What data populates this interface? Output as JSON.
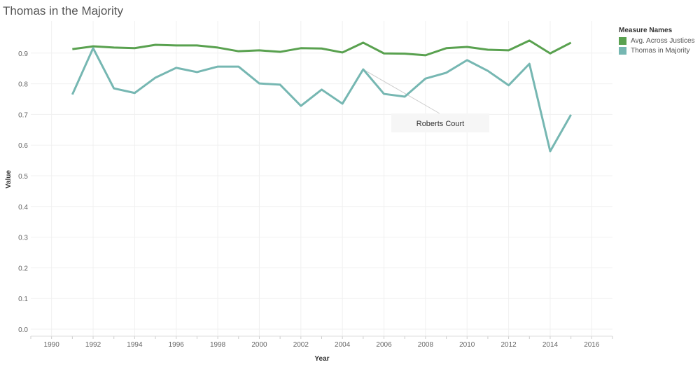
{
  "chart_data": {
    "type": "line",
    "title": "Thomas in the Majority",
    "xlabel": "Year",
    "ylabel": "Value",
    "xlim": [
      1989,
      2017
    ],
    "ylim": [
      0,
      1.0
    ],
    "xticks": [
      1990,
      1992,
      1994,
      1996,
      1998,
      2000,
      2002,
      2004,
      2006,
      2008,
      2010,
      2012,
      2014,
      2016
    ],
    "yticks": [
      0.0,
      0.1,
      0.2,
      0.3,
      0.4,
      0.5,
      0.6,
      0.7,
      0.8,
      0.9
    ],
    "grid": true,
    "legend": {
      "title": "Measure Names",
      "placement": "right"
    },
    "x": [
      1991,
      1992,
      1993,
      1994,
      1995,
      1996,
      1997,
      1998,
      1999,
      2000,
      2001,
      2002,
      2003,
      2004,
      2005,
      2006,
      2007,
      2008,
      2009,
      2010,
      2011,
      2012,
      2013,
      2014,
      2015
    ],
    "series": [
      {
        "name": "Avg. Across Justices",
        "color": "#59a14f",
        "values": [
          0.913,
          0.922,
          0.918,
          0.916,
          0.927,
          0.925,
          0.925,
          0.918,
          0.906,
          0.909,
          0.904,
          0.916,
          0.915,
          0.902,
          0.934,
          0.899,
          0.898,
          0.893,
          0.916,
          0.92,
          0.911,
          0.909,
          0.941,
          0.899,
          0.934
        ]
      },
      {
        "name": "Thomas in Majority",
        "color": "#76b7b2",
        "values": [
          0.765,
          0.916,
          0.785,
          0.77,
          0.82,
          0.852,
          0.838,
          0.856,
          0.856,
          0.801,
          0.797,
          0.728,
          0.781,
          0.735,
          0.847,
          0.767,
          0.758,
          0.817,
          0.836,
          0.877,
          0.842,
          0.795,
          0.865,
          0.58,
          0.699
        ]
      }
    ],
    "annotations": [
      {
        "text": "Roberts Court",
        "x": 2005,
        "series": "Thomas in Majority"
      }
    ]
  }
}
